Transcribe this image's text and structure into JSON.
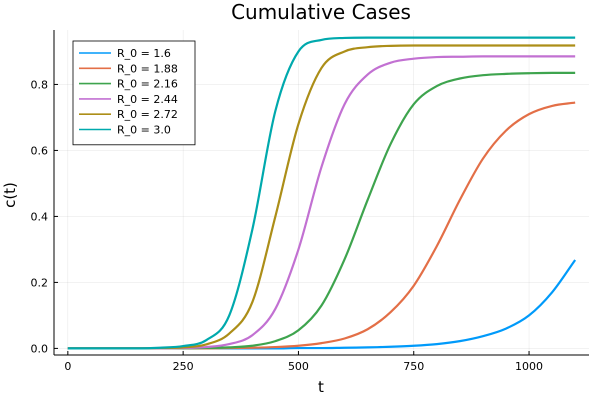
{
  "chart_data": {
    "type": "line",
    "title": "Cumulative Cases",
    "xlabel": "t",
    "ylabel": "c(t)",
    "xlim": [
      -30,
      1130
    ],
    "ylim": [
      -0.02,
      0.965
    ],
    "xticks": [
      0,
      250,
      500,
      750,
      1000
    ],
    "xtick_labels": [
      "0",
      "250",
      "500",
      "750",
      "1000"
    ],
    "yticks": [
      0.0,
      0.2,
      0.4,
      0.6,
      0.8
    ],
    "ytick_labels": [
      "0.0",
      "0.2",
      "0.4",
      "0.6",
      "0.8"
    ],
    "grid": true,
    "legend_position": "top-left",
    "x": [
      0,
      50,
      100,
      150,
      200,
      250,
      300,
      350,
      400,
      450,
      500,
      550,
      600,
      650,
      700,
      750,
      800,
      850,
      900,
      950,
      1000,
      1050,
      1100
    ],
    "series": [
      {
        "name": "R_0 = 1.6",
        "color": "#009AFA",
        "values": [
          0,
          0,
          0,
          0,
          0,
          0,
          0,
          0,
          0,
          0,
          0.001,
          0.001,
          0.002,
          0.003,
          0.005,
          0.008,
          0.013,
          0.022,
          0.037,
          0.06,
          0.1,
          0.17,
          0.268
        ]
      },
      {
        "name": "R_0 = 1.88",
        "color": "#E36F47",
        "values": [
          0,
          0,
          0,
          0,
          0,
          0,
          0,
          0.001,
          0.002,
          0.004,
          0.008,
          0.016,
          0.03,
          0.058,
          0.11,
          0.19,
          0.31,
          0.45,
          0.575,
          0.66,
          0.71,
          0.735,
          0.745
        ]
      },
      {
        "name": "R_0 = 2.16",
        "color": "#3EA44E",
        "values": [
          0,
          0,
          0,
          0,
          0,
          0,
          0.001,
          0.003,
          0.008,
          0.022,
          0.055,
          0.13,
          0.27,
          0.45,
          0.62,
          0.74,
          0.795,
          0.818,
          0.828,
          0.832,
          0.834,
          0.835,
          0.835
        ]
      },
      {
        "name": "R_0 = 2.44",
        "color": "#C271D2",
        "values": [
          0,
          0,
          0,
          0,
          0,
          0.001,
          0.004,
          0.013,
          0.04,
          0.12,
          0.3,
          0.55,
          0.74,
          0.83,
          0.866,
          0.878,
          0.883,
          0.884,
          0.885,
          0.885,
          0.885,
          0.885,
          0.885
        ]
      },
      {
        "name": "R_0 = 2.72",
        "color": "#AC8E18",
        "values": [
          0,
          0,
          0,
          0,
          0.001,
          0.003,
          0.012,
          0.045,
          0.14,
          0.4,
          0.68,
          0.85,
          0.9,
          0.913,
          0.917,
          0.918,
          0.918,
          0.918,
          0.918,
          0.918,
          0.918,
          0.918,
          0.918
        ]
      },
      {
        "name": "R_0 = 3.0",
        "color": "#00A9AD",
        "values": [
          0,
          0,
          0,
          0,
          0.002,
          0.007,
          0.025,
          0.1,
          0.36,
          0.72,
          0.9,
          0.935,
          0.941,
          0.942,
          0.942,
          0.942,
          0.942,
          0.942,
          0.942,
          0.942,
          0.942,
          0.942,
          0.942
        ]
      }
    ]
  }
}
